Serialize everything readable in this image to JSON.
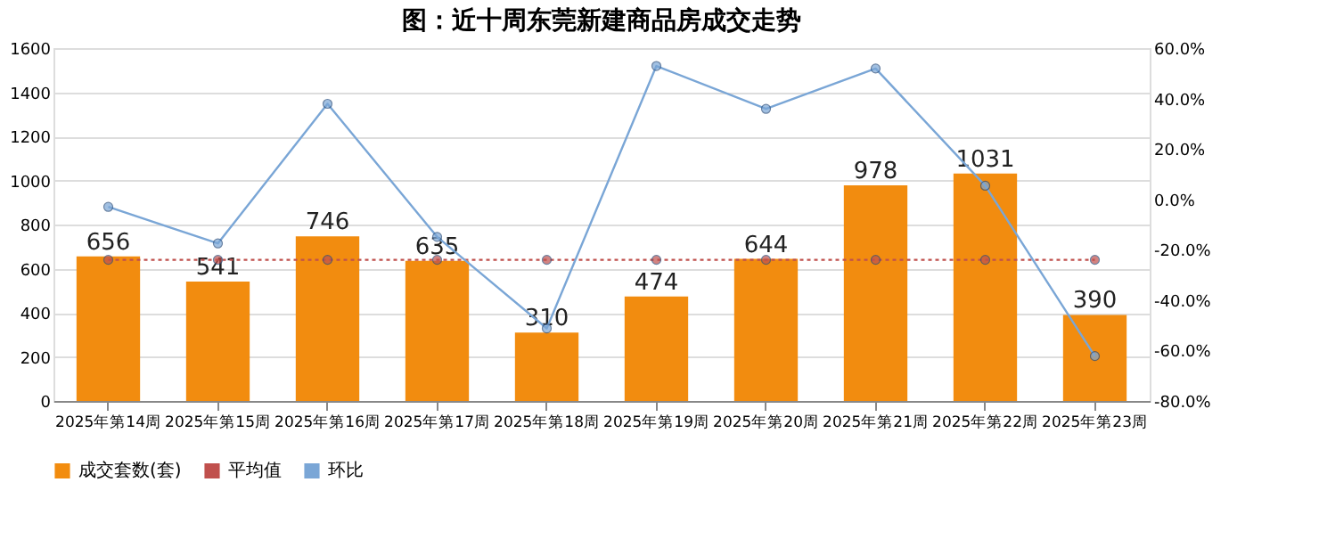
{
  "chart_data": {
    "type": "bar",
    "title": "图：近十周东莞新建商品房成交走势",
    "categories": [
      "2025年第14周",
      "2025年第15周",
      "2025年第16周",
      "2025年第17周",
      "2025年第18周",
      "2025年第19周",
      "2025年第20周",
      "2025年第21周",
      "2025年第22周",
      "2025年第23周"
    ],
    "series": [
      {
        "name": "成交套数(套)",
        "color": "#f28c0f",
        "values": [
          656,
          541,
          746,
          635,
          310,
          474,
          644,
          978,
          1031,
          390
        ],
        "value_labels": [
          "656",
          "541",
          "746",
          "635",
          "310",
          "474",
          "644",
          "978",
          "1031",
          "390"
        ]
      },
      {
        "name": "平均值",
        "type": "line",
        "color": "#c0504d",
        "line_style": "dotted",
        "marker": "circle",
        "values": [
          640,
          640,
          640,
          640,
          640,
          640,
          640,
          640,
          640,
          640
        ]
      },
      {
        "name": "环比",
        "type": "line",
        "axis": "y2",
        "color": "#7aa6d6",
        "marker": "circle",
        "line_style": "solid",
        "values": [
          -3,
          -17.5,
          37.9,
          -14.9,
          -51.2,
          52.9,
          35.9,
          51.9,
          5.4,
          -62.2
        ]
      }
    ],
    "ylim": [
      0,
      1600
    ],
    "yticks": [
      0,
      200,
      400,
      600,
      800,
      1000,
      1200,
      1400,
      1600
    ],
    "y2lim": [
      -80,
      60
    ],
    "y2ticks": [
      {
        "value": -80,
        "label": "-80.0%"
      },
      {
        "value": -60,
        "label": "-60.0%"
      },
      {
        "value": -40,
        "label": "-40.0%"
      },
      {
        "value": -20,
        "label": "-20.0%"
      },
      {
        "value": 0,
        "label": "0.0%"
      },
      {
        "value": 20,
        "label": "20.0%"
      },
      {
        "value": 40,
        "label": "40.0%"
      },
      {
        "value": 60,
        "label": "60.0%"
      }
    ],
    "grid": "y",
    "legend": "bottom"
  }
}
